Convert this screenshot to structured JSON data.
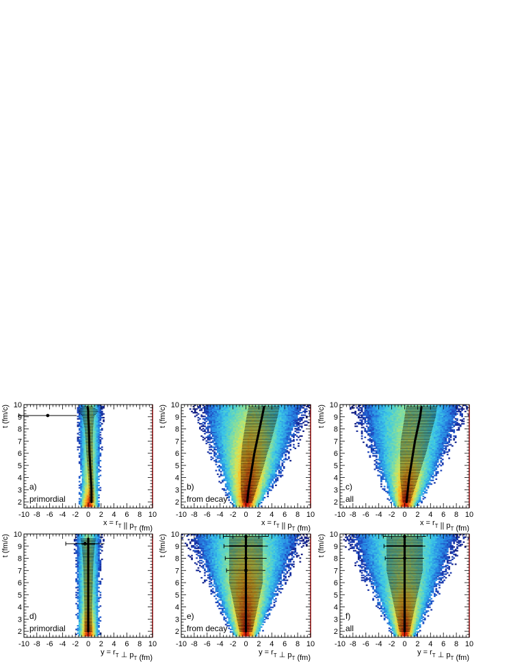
{
  "chart_data": [
    {
      "type": "heatmap",
      "id": "a",
      "tag": "a)",
      "label": "primordial",
      "xlabel": "x = r_T || p_T (fm)",
      "ylabel": "t (fm/c)",
      "xlim": [
        -10,
        10
      ],
      "ylim": [
        1.5,
        10
      ],
      "xticks": [
        -10,
        -8,
        -6,
        -4,
        -2,
        0,
        2,
        4,
        6,
        8,
        10
      ],
      "yticks": [
        2,
        3,
        4,
        5,
        6,
        7,
        8,
        9,
        10
      ],
      "spread": {
        "t": [
          1.6,
          2.5,
          4,
          6,
          7,
          10
        ],
        "lo": [
          -1.4,
          -1.2,
          -1.2,
          -1.3,
          -1.4,
          -1.6
        ],
        "hi": [
          1.6,
          1.6,
          1.7,
          1.8,
          1.9,
          2.1
        ]
      },
      "hot_cutoff_t": 3.5,
      "profile": {
        "t": [
          2,
          3,
          4,
          5,
          6,
          7,
          8,
          9,
          9.1,
          9.5,
          9.8
        ],
        "mean": [
          0.5,
          0.5,
          0.4,
          0.3,
          0.2,
          0.15,
          0.1,
          0.0,
          -6.3,
          0.0,
          -0.1
        ],
        "err": [
          0.4,
          0.4,
          0.4,
          0.45,
          0.5,
          0.55,
          0.65,
          0.9,
          4.5,
          1.6,
          0.9
        ]
      }
    },
    {
      "type": "heatmap",
      "id": "b",
      "tag": "b)",
      "label": "from decay",
      "xlabel": "x = r_T || p_T (fm)",
      "ylabel": "t (fm/c)",
      "xlim": [
        -10,
        10
      ],
      "ylim": [
        1.5,
        10
      ],
      "xticks": [
        -10,
        -8,
        -6,
        -4,
        -2,
        0,
        2,
        4,
        6,
        8,
        10
      ],
      "yticks": [
        2,
        3,
        4,
        5,
        6,
        7,
        8,
        9,
        10
      ],
      "spread": {
        "t": [
          1.6,
          2.5,
          4,
          6,
          8,
          10
        ],
        "lo": [
          -1.8,
          -2.6,
          -3.6,
          -4.8,
          -6.0,
          -7.0
        ],
        "hi": [
          2.0,
          3.0,
          4.6,
          6.2,
          7.8,
          9.4
        ]
      },
      "hot_cutoff_t": 10,
      "profile": {
        "t": [
          2,
          3,
          4,
          5,
          6,
          7,
          8,
          9,
          9.8
        ],
        "mean": [
          0.2,
          0.4,
          0.7,
          1.0,
          1.3,
          1.7,
          2.1,
          2.5,
          2.8
        ],
        "err": [
          0.8,
          1.2,
          1.5,
          1.8,
          2.0,
          2.2,
          2.3,
          2.4,
          2.4
        ]
      }
    },
    {
      "type": "heatmap",
      "id": "c",
      "tag": "c)",
      "label": "all",
      "xlabel": "x = r_T || p_T (fm)",
      "ylabel": "t (fm/c)",
      "xlim": [
        -10,
        10
      ],
      "ylim": [
        1.5,
        10
      ],
      "xticks": [
        -10,
        -8,
        -6,
        -4,
        -2,
        0,
        2,
        4,
        6,
        8,
        10
      ],
      "yticks": [
        2,
        3,
        4,
        5,
        6,
        7,
        8,
        9,
        10
      ],
      "spread": {
        "t": [
          1.6,
          2.5,
          4,
          6,
          8,
          10
        ],
        "lo": [
          -1.6,
          -2.4,
          -3.4,
          -4.6,
          -6.0,
          -7.0
        ],
        "hi": [
          1.8,
          2.8,
          4.4,
          6.0,
          7.6,
          9.0
        ]
      },
      "hot_cutoff_t": 6,
      "profile": {
        "t": [
          2,
          3,
          4,
          5,
          6,
          7,
          8,
          9,
          9.8
        ],
        "mean": [
          0.3,
          0.5,
          0.7,
          1.0,
          1.3,
          1.6,
          2.0,
          2.4,
          2.6
        ],
        "err": [
          0.6,
          1.0,
          1.4,
          1.7,
          2.0,
          2.2,
          2.3,
          2.4,
          2.4
        ]
      }
    },
    {
      "type": "heatmap",
      "id": "d",
      "tag": "d)",
      "label": "primordial",
      "xlabel": "y = r_T ⊥ p_T (fm)",
      "ylabel": "t (fm/c)",
      "xlim": [
        -10,
        10
      ],
      "ylim": [
        1.5,
        10
      ],
      "xticks": [
        -10,
        -8,
        -6,
        -4,
        -2,
        0,
        2,
        4,
        6,
        8,
        10
      ],
      "yticks": [
        2,
        3,
        4,
        5,
        6,
        7,
        8,
        9,
        10
      ],
      "spread": {
        "t": [
          1.6,
          2.5,
          4,
          6,
          8,
          10
        ],
        "lo": [
          -1.6,
          -1.6,
          -1.6,
          -1.7,
          -1.8,
          -2.0
        ],
        "hi": [
          1.6,
          1.6,
          1.6,
          1.7,
          1.8,
          2.0
        ]
      },
      "hot_cutoff_t": 4,
      "profile": {
        "t": [
          2,
          3,
          4,
          5,
          6,
          7,
          8,
          9,
          9.2,
          9.6
        ],
        "mean": [
          0.0,
          0.0,
          0.0,
          0.0,
          0.0,
          0.0,
          0.0,
          0.0,
          -0.5,
          0.0
        ],
        "err": [
          0.6,
          0.6,
          0.6,
          0.65,
          0.7,
          0.75,
          0.85,
          1.0,
          3.0,
          1.2
        ]
      }
    },
    {
      "type": "heatmap",
      "id": "e",
      "tag": "e)",
      "label": "from decay",
      "xlabel": "y = r_T ⊥ p_T (fm)",
      "ylabel": "t (fm/c)",
      "xlim": [
        -10,
        10
      ],
      "ylim": [
        1.5,
        10
      ],
      "xticks": [
        -10,
        -8,
        -6,
        -4,
        -2,
        0,
        2,
        4,
        6,
        8,
        10
      ],
      "yticks": [
        2,
        3,
        4,
        5,
        6,
        7,
        8,
        9,
        10
      ],
      "spread": {
        "t": [
          1.6,
          2.5,
          4,
          6,
          8,
          10
        ],
        "lo": [
          -1.8,
          -2.6,
          -3.8,
          -5.4,
          -7.0,
          -8.6
        ],
        "hi": [
          1.8,
          2.6,
          3.8,
          5.4,
          7.0,
          8.6
        ]
      },
      "hot_cutoff_t": 10,
      "profile": {
        "t": [
          2,
          3,
          4,
          5,
          6,
          7,
          8,
          9,
          9.8
        ],
        "mean": [
          0.0,
          0.0,
          0.0,
          0.0,
          0.0,
          0.0,
          0.0,
          0.0,
          0.0
        ],
        "err": [
          1.0,
          1.4,
          1.8,
          2.2,
          2.6,
          3.0,
          3.2,
          3.4,
          3.5
        ]
      }
    },
    {
      "type": "heatmap",
      "id": "f",
      "tag": "f)",
      "label": "all",
      "xlabel": "y = r_T ⊥ p_T (fm)",
      "ylabel": "t (fm/c)",
      "xlim": [
        -10,
        10
      ],
      "ylim": [
        1.5,
        10
      ],
      "xticks": [
        -10,
        -8,
        -6,
        -4,
        -2,
        0,
        2,
        4,
        6,
        8,
        10
      ],
      "yticks": [
        2,
        3,
        4,
        5,
        6,
        7,
        8,
        9,
        10
      ],
      "spread": {
        "t": [
          1.6,
          2.5,
          4,
          6,
          8,
          10
        ],
        "lo": [
          -1.6,
          -2.4,
          -3.6,
          -5.2,
          -6.8,
          -8.4
        ],
        "hi": [
          1.6,
          2.4,
          3.6,
          5.2,
          6.8,
          8.4
        ]
      },
      "hot_cutoff_t": 6,
      "profile": {
        "t": [
          2,
          3,
          4,
          5,
          6,
          7,
          8,
          9,
          9.8
        ],
        "mean": [
          0.0,
          0.0,
          0.0,
          0.0,
          0.0,
          0.0,
          0.0,
          0.0,
          0.0
        ],
        "err": [
          0.8,
          1.2,
          1.6,
          2.0,
          2.4,
          2.8,
          3.0,
          3.2,
          3.3
        ]
      }
    }
  ]
}
